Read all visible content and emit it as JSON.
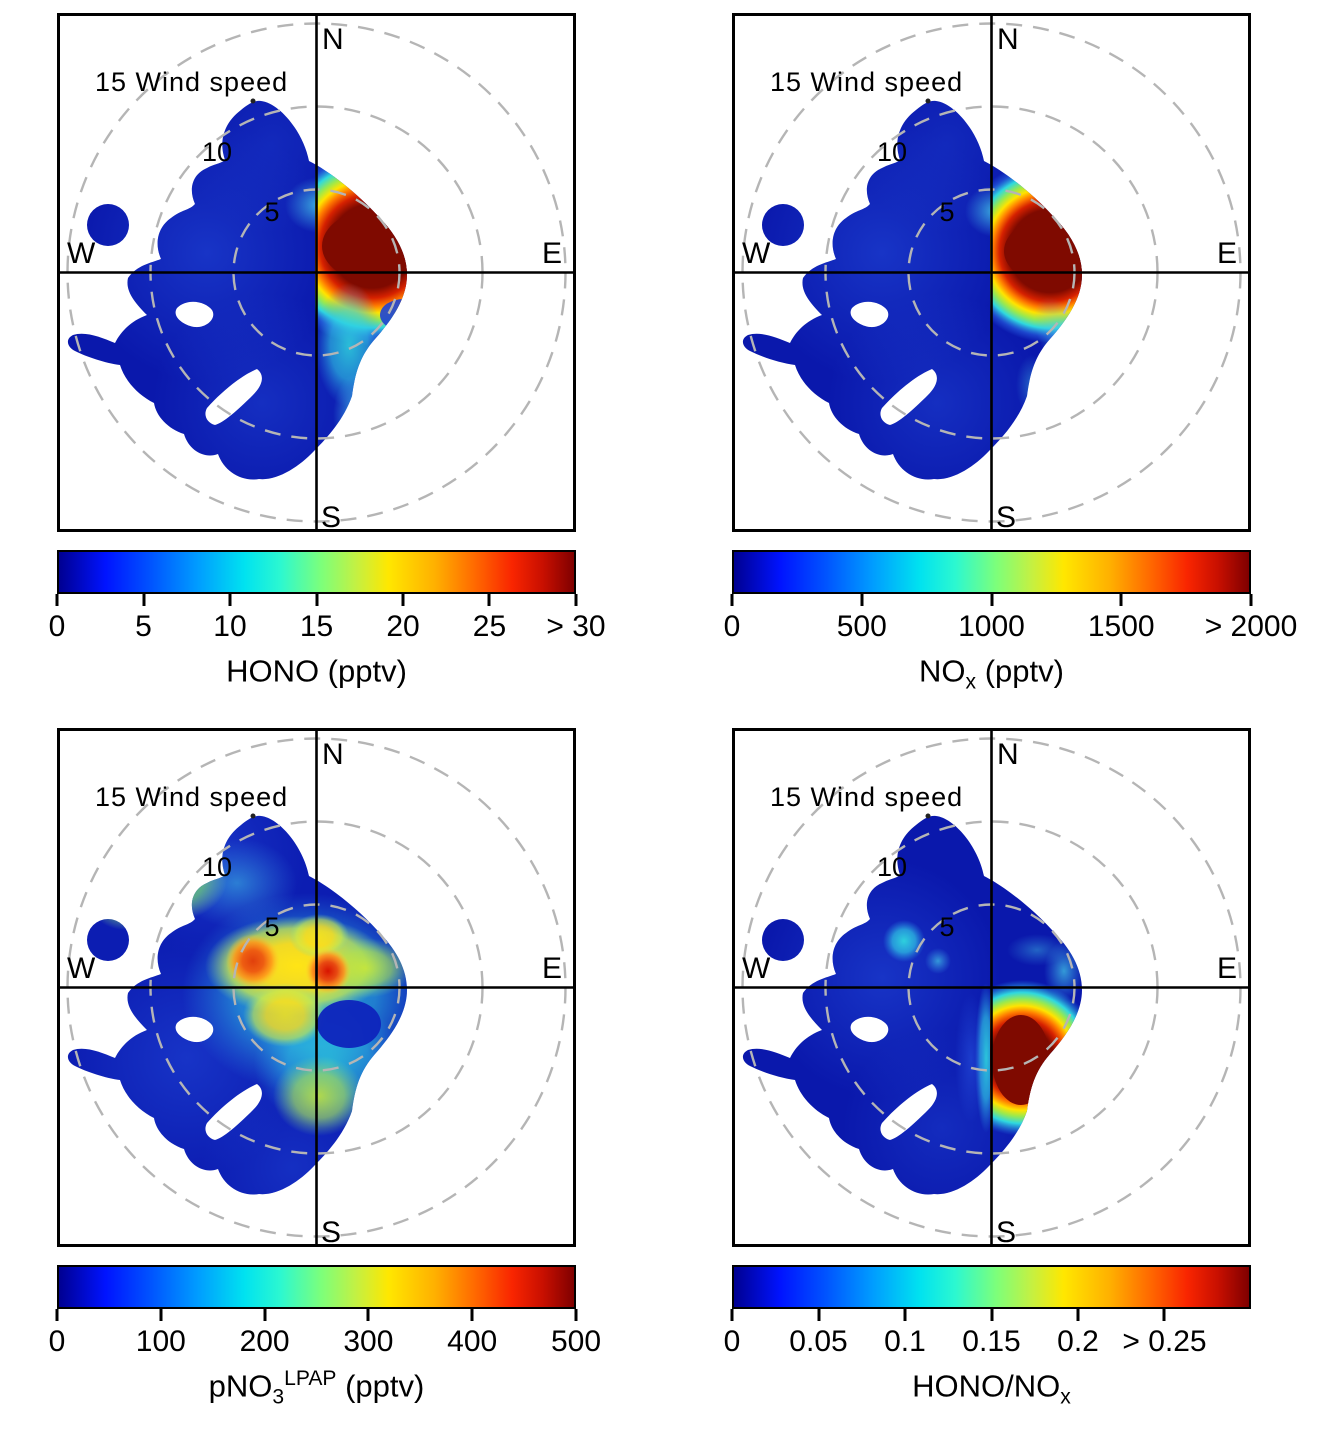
{
  "figure": {
    "background": "#ffffff",
    "description": "Four bivariate polar plots (wind direction vs wind speed) of pollutant concentrations, each with a jet colorbar"
  },
  "panels": [
    {
      "id": "hono",
      "position": "top-left",
      "wind_speed_label": "15 Wind speed",
      "ring_label_mid": "10",
      "ring_label_inner": "5",
      "ring_label_color": "#ffffff",
      "compass": {
        "n": "N",
        "e": "E",
        "s": "S",
        "w": "W"
      },
      "colorbar": {
        "tick_labels": [
          "0",
          "5",
          "10",
          "15",
          "20",
          "25",
          "> 30"
        ],
        "fractions": [
          0,
          0.16667,
          0.33333,
          0.5,
          0.66667,
          0.83333,
          1
        ],
        "title": {
          "main": "HONO",
          "sub": "",
          "sup": "",
          "suffix": " (pptv)"
        }
      }
    },
    {
      "id": "nox",
      "position": "top-right",
      "wind_speed_label": "15 Wind speed",
      "ring_label_mid": "10",
      "ring_label_inner": "5",
      "ring_label_color": "#ffffff",
      "compass": {
        "n": "N",
        "e": "E",
        "s": "S",
        "w": "W"
      },
      "colorbar": {
        "tick_labels": [
          "0",
          "500",
          "1000",
          "1500",
          "> 2000"
        ],
        "fractions": [
          0,
          0.25,
          0.5,
          0.75,
          1
        ],
        "title": {
          "main": "NO",
          "sub": "x",
          "sup": "",
          "suffix": " (pptv)"
        }
      }
    },
    {
      "id": "pno3",
      "position": "bottom-left",
      "wind_speed_label": "15 Wind speed",
      "ring_label_mid": "10",
      "ring_label_inner": "5",
      "ring_label_color": "#000000",
      "compass": {
        "n": "N",
        "e": "E",
        "s": "S",
        "w": "W"
      },
      "colorbar": {
        "tick_labels": [
          "0",
          "100",
          "200",
          "300",
          "400",
          "500"
        ],
        "fractions": [
          0,
          0.2,
          0.4,
          0.6,
          0.8,
          1
        ],
        "title": {
          "main": "pNO",
          "sub": "3",
          "sup": "LPAP",
          "suffix": " (pptv)"
        }
      }
    },
    {
      "id": "hono_nox_ratio",
      "position": "bottom-right",
      "wind_speed_label": "15 Wind speed",
      "ring_label_mid": "10",
      "ring_label_inner": "5",
      "ring_label_color": "#ffffff",
      "compass": {
        "n": "N",
        "e": "E",
        "s": "S",
        "w": "W"
      },
      "colorbar": {
        "tick_labels": [
          "0",
          "0.05",
          "0.1",
          "0.15",
          "0.2",
          "> 0.25"
        ],
        "fractions": [
          0,
          0.16667,
          0.33333,
          0.5,
          0.66667,
          0.83333
        ],
        "title": {
          "main": "HONO/NO",
          "sub": "x",
          "sup": "",
          "suffix": ""
        }
      }
    }
  ],
  "chart_data": [
    {
      "type": "heatmap",
      "subtype": "bivariate-polar-plot",
      "panel": "top-left",
      "title": "HONO (pptv)",
      "colormap": "jet",
      "colorbar_range": [
        0,
        30
      ],
      "colorbar_ticks": [
        0,
        5,
        10,
        15,
        20,
        25,
        30
      ],
      "colorbar_overflow_label": "> 30",
      "wind_speed_rings": [
        5,
        10,
        15
      ],
      "wind_speed_axis_label": "Wind speed",
      "compass_labels": [
        "N",
        "E",
        "S",
        "W"
      ],
      "features": [
        {
          "sector": "E to NE of center, wind speed 0-5",
          "value": "> 30 (dark red maximum)"
        },
        {
          "sector": "fringe around maximum (N and W edges)",
          "value": "10-25 (cyan-yellow-orange gradient)"
        },
        {
          "sector": "S-SE at wind speed 2-7",
          "value": "8-12 (cyan plume)"
        },
        {
          "sector": "W / NW / SW bulk out to wind speed ~14",
          "value": "0-4 (dark blue)"
        },
        {
          "sector": "isolated spot W at wind speed ~13",
          "value": "0-3 (dark blue)"
        }
      ]
    },
    {
      "type": "heatmap",
      "subtype": "bivariate-polar-plot",
      "panel": "top-right",
      "title": "NOx (pptv)",
      "colormap": "jet",
      "colorbar_range": [
        0,
        2000
      ],
      "colorbar_ticks": [
        0,
        500,
        1000,
        1500,
        2000
      ],
      "colorbar_overflow_label": "> 2000",
      "wind_speed_rings": [
        5,
        10,
        15
      ],
      "wind_speed_axis_label": "Wind speed",
      "compass_labels": [
        "N",
        "E",
        "S",
        "W"
      ],
      "features": [
        {
          "sector": "E-NE of center, wind speed 0-5",
          "value": "> 2000 (dark red maximum)"
        },
        {
          "sector": "fringe around maximum",
          "value": "600-1800 (cyan-yellow-orange gradient)"
        },
        {
          "sector": "SE edge of lobe, wind speed ~5",
          "value": "600-900 (cyan arc)"
        },
        {
          "sector": "W / NW / SW bulk out to wind speed ~14",
          "value": "0-300 (dark blue)"
        }
      ]
    },
    {
      "type": "heatmap",
      "subtype": "bivariate-polar-plot",
      "panel": "bottom-left",
      "title": "pNO3 LPAP (pptv)",
      "colormap": "jet",
      "colorbar_range": [
        0,
        500
      ],
      "colorbar_ticks": [
        0,
        100,
        200,
        300,
        400,
        500
      ],
      "colorbar_overflow_label": "500",
      "wind_speed_rings": [
        5,
        10,
        15
      ],
      "wind_speed_axis_label": "Wind speed",
      "compass_labels": [
        "N",
        "E",
        "S",
        "W"
      ],
      "features": [
        {
          "sector": "WNW of center, wind speed ~4",
          "value": "350-420 (orange-red spot)"
        },
        {
          "sector": "just NE of center, wind speed ~1",
          "value": "380-450 (red spot)"
        },
        {
          "sector": "band W-N of center, wind speed 2-6",
          "value": "250-330 (yellow)"
        },
        {
          "sector": "NW shoulder, wind speed ~10",
          "value": "200-260 (green patch)"
        },
        {
          "sector": "S of center, wind speed ~4",
          "value": "250-300 (yellow-green blob)"
        },
        {
          "sector": "around warm cores",
          "value": "120-200 (cyan wash)"
        },
        {
          "sector": "SE of center, wind speed ~3",
          "value": "40-80 (dark blue oval)"
        },
        {
          "sector": "outer W / SW bulk",
          "value": "0-100 (blue)"
        }
      ]
    },
    {
      "type": "heatmap",
      "subtype": "bivariate-polar-plot",
      "panel": "bottom-right",
      "title": "HONO/NOx",
      "colormap": "jet",
      "colorbar_range": [
        0,
        0.3
      ],
      "colorbar_ticks": [
        0,
        0.05,
        0.1,
        0.15,
        0.2,
        0.25
      ],
      "colorbar_overflow_label": "> 0.25",
      "wind_speed_rings": [
        5,
        10,
        15
      ],
      "wind_speed_axis_label": "Wind speed",
      "compass_labels": [
        "N",
        "E",
        "S",
        "W"
      ],
      "features": [
        {
          "sector": "SE of center, wind speed 2-7",
          "value": "> 0.25 (dark red maximum)"
        },
        {
          "sector": "fringe of maximum",
          "value": "0.1-0.22 (cyan-yellow-orange)"
        },
        {
          "sector": "narrow streak along S axis",
          "value": "0.1-0.15 (cyan)"
        },
        {
          "sector": "NW of center, wind speed ~5",
          "value": "0.1 (cyan spot)"
        },
        {
          "sector": "E lobe edge above E-W axis",
          "value": "0.08-0.12 (cyan)"
        },
        {
          "sector": "W / NW / SW bulk",
          "value": "0-0.05 (dark blue)"
        }
      ]
    }
  ]
}
